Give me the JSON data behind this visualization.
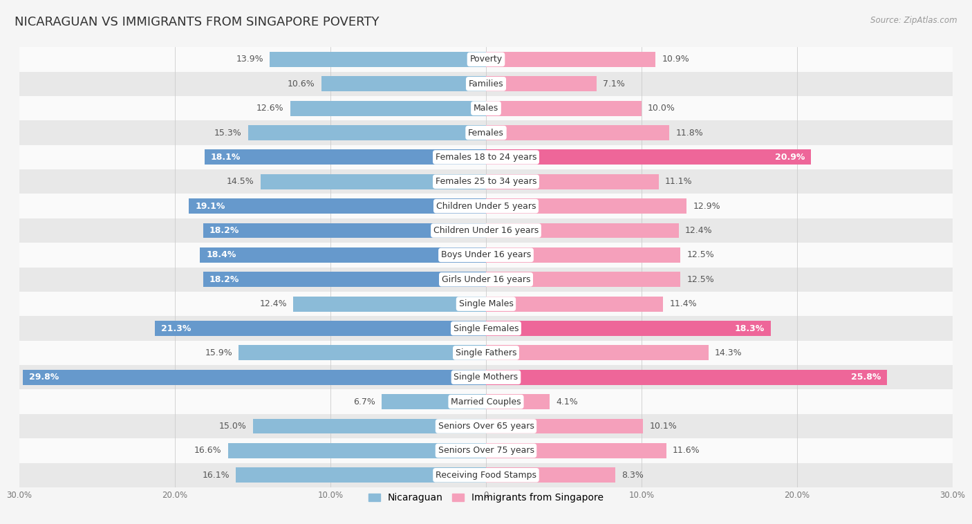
{
  "title": "NICARAGUAN VS IMMIGRANTS FROM SINGAPORE POVERTY",
  "source": "Source: ZipAtlas.com",
  "categories": [
    "Poverty",
    "Families",
    "Males",
    "Females",
    "Females 18 to 24 years",
    "Females 25 to 34 years",
    "Children Under 5 years",
    "Children Under 16 years",
    "Boys Under 16 years",
    "Girls Under 16 years",
    "Single Males",
    "Single Females",
    "Single Fathers",
    "Single Mothers",
    "Married Couples",
    "Seniors Over 65 years",
    "Seniors Over 75 years",
    "Receiving Food Stamps"
  ],
  "nicaraguan": [
    13.9,
    10.6,
    12.6,
    15.3,
    18.1,
    14.5,
    19.1,
    18.2,
    18.4,
    18.2,
    12.4,
    21.3,
    15.9,
    29.8,
    6.7,
    15.0,
    16.6,
    16.1
  ],
  "singapore": [
    10.9,
    7.1,
    10.0,
    11.8,
    20.9,
    11.1,
    12.9,
    12.4,
    12.5,
    12.5,
    11.4,
    18.3,
    14.3,
    25.8,
    4.1,
    10.1,
    11.6,
    8.3
  ],
  "color_nicaraguan": "#8bbbd8",
  "color_singapore": "#f5a0bb",
  "color_nicaraguan_highlight": "#6699cc",
  "color_singapore_highlight": "#ee6699",
  "background_color": "#f5f5f5",
  "row_color_light": "#fafafa",
  "row_color_dark": "#e8e8e8",
  "xlim": 30.0,
  "bar_height": 0.62,
  "label_fontsize": 9.0,
  "cat_fontsize": 9.0,
  "title_fontsize": 13,
  "legend_fontsize": 10,
  "highlight_nicaraguan": [
    4,
    6,
    7,
    8,
    9,
    11,
    13
  ],
  "highlight_singapore": [
    4,
    11,
    13
  ]
}
